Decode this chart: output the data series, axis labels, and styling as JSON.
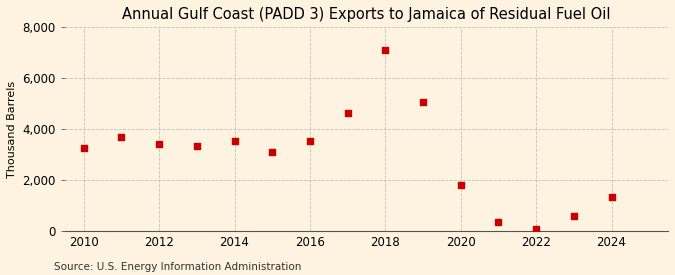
{
  "title": "Annual Gulf Coast (PADD 3) Exports to Jamaica of Residual Fuel Oil",
  "ylabel": "Thousand Barrels",
  "source": "Source: U.S. Energy Information Administration",
  "background_color": "#fdf3e0",
  "plot_bg_color": "#fdf3e0",
  "years": [
    2010,
    2011,
    2012,
    2013,
    2014,
    2015,
    2016,
    2017,
    2018,
    2019,
    2020,
    2021,
    2022,
    2023,
    2024
  ],
  "values": [
    3250,
    3700,
    3400,
    3350,
    3550,
    3100,
    3550,
    4650,
    7100,
    5050,
    1800,
    350,
    80,
    600,
    1350
  ],
  "marker_color": "#cc0000",
  "ylim": [
    0,
    8000
  ],
  "yticks": [
    0,
    2000,
    4000,
    6000,
    8000
  ],
  "xlim": [
    2009.5,
    2025.5
  ],
  "xticks": [
    2010,
    2012,
    2014,
    2016,
    2018,
    2020,
    2022,
    2024
  ],
  "title_fontsize": 10.5,
  "axis_fontsize": 8.5,
  "ylabel_fontsize": 8,
  "source_fontsize": 7.5,
  "marker_size": 18
}
